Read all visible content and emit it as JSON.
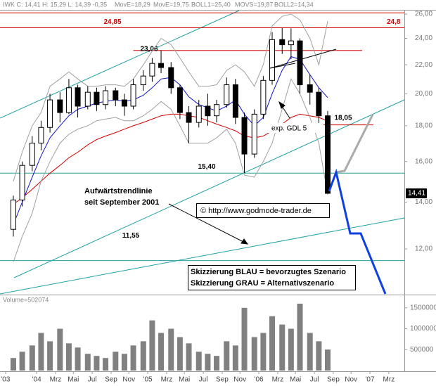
{
  "chart_data": [
    {
      "type": "candlestick",
      "title": "IWK C: 14,41 H: 15,29 L: 14,39 -0,35",
      "header_note": "MOVS=19,87",
      "log_y": true,
      "xlim": [
        2003.67,
        2007.31
      ],
      "ylim": [
        10.35,
        26.3
      ],
      "yticks": [
        {
          "value": 12,
          "label": "12,00"
        },
        {
          "value": 14,
          "label": "14,00"
        },
        {
          "value": 16,
          "label": "16,00"
        },
        {
          "value": 18,
          "label": "18,00"
        },
        {
          "value": 20,
          "label": "20,00"
        },
        {
          "value": 22,
          "label": "22,00"
        },
        {
          "value": 24,
          "label": "24,00"
        },
        {
          "value": 26,
          "label": "26,00"
        }
      ],
      "x": [
        2003.75,
        2003.83,
        2003.92,
        2004,
        2004.08,
        2004.17,
        2004.25,
        2004.33,
        2004.42,
        2004.5,
        2004.58,
        2004.67,
        2004.75,
        2004.83,
        2004.92,
        2005,
        2005.08,
        2005.17,
        2005.25,
        2005.33,
        2005.42,
        2005.5,
        2005.58,
        2005.67,
        2005.75,
        2005.83,
        2005.92,
        2006,
        2006.08,
        2006.17,
        2006.25,
        2006.33,
        2006.42,
        2006.5,
        2006.58
      ],
      "open": [
        12.8,
        14.1,
        15.8,
        17.0,
        17.9,
        19.6,
        18.8,
        20.4,
        19.2,
        20.1,
        19.3,
        20.2,
        19.6,
        19.2,
        20.6,
        21.2,
        22.1,
        21.8,
        20.4,
        18.8,
        18.2,
        19.2,
        18.6,
        19.3,
        20.6,
        18.5,
        16.4,
        18.7,
        20.9,
        23.9,
        23.5,
        23.8,
        20.6,
        20.1,
        18.6
      ],
      "high": [
        14.3,
        16.0,
        17.4,
        18.3,
        20.0,
        20.1,
        21.0,
        20.6,
        20.5,
        20.4,
        20.5,
        20.4,
        20.0,
        21.0,
        21.6,
        22.5,
        23.06,
        22.2,
        20.6,
        19.2,
        19.6,
        20.0,
        19.6,
        21.1,
        21.0,
        18.8,
        19.0,
        21.2,
        24.5,
        24.85,
        24.8,
        24.0,
        21.3,
        20.4,
        18.9
      ],
      "low": [
        12.5,
        13.8,
        15.5,
        16.6,
        17.6,
        18.2,
        18.7,
        18.5,
        19.0,
        18.9,
        19.0,
        19.2,
        18.6,
        19.0,
        20.2,
        20.8,
        21.4,
        20.0,
        18.4,
        17.0,
        17.9,
        18.0,
        18.2,
        19.1,
        18.1,
        15.4,
        16.2,
        18.4,
        20.6,
        22.8,
        22.4,
        20.0,
        19.3,
        18.0,
        14.39
      ],
      "close": [
        14.1,
        15.8,
        17.0,
        17.9,
        19.6,
        18.8,
        20.4,
        19.2,
        20.1,
        19.3,
        20.2,
        19.6,
        19.2,
        20.6,
        21.2,
        22.1,
        21.8,
        20.4,
        18.8,
        18.2,
        19.2,
        18.6,
        19.3,
        20.6,
        18.5,
        16.4,
        18.7,
        20.9,
        23.9,
        23.5,
        23.8,
        20.6,
        20.1,
        18.6,
        14.41
      ],
      "up_color": "#ffffff",
      "down_color": "#000000",
      "series": [
        {
          "name": "MovE=18,29",
          "color": "#d00000",
          "values": [
            13.9,
            14.2,
            14.6,
            15.0,
            15.4,
            15.8,
            16.2,
            16.5,
            16.9,
            17.2,
            17.4,
            17.6,
            17.8,
            18.0,
            18.2,
            18.4,
            18.6,
            18.7,
            18.7,
            18.6,
            18.5,
            18.3,
            18.1,
            17.9,
            17.7,
            17.4,
            17.3,
            17.4,
            17.7,
            18.1,
            18.5,
            18.7,
            18.6,
            18.5,
            18.29
          ]
        },
        {
          "name": "MovE=19,75",
          "color": "#1010c0",
          "values": [
            13.0,
            14.0,
            15.2,
            16.3,
            17.3,
            18.0,
            18.6,
            19.0,
            19.2,
            19.4,
            19.5,
            19.6,
            19.5,
            19.6,
            19.9,
            20.4,
            21.0,
            21.1,
            20.6,
            19.8,
            19.3,
            19.1,
            18.9,
            19.2,
            19.6,
            18.7,
            18.0,
            18.5,
            20.0,
            21.6,
            22.6,
            22.4,
            21.3,
            20.4,
            19.75
          ]
        },
        {
          "name": "BOLL1=25,40",
          "color": "#a0a0a0",
          "values": [
            15.0,
            16.5,
            18.0,
            18.8,
            20.5,
            21.0,
            21.5,
            21.0,
            20.5,
            20.5,
            20.6,
            20.6,
            20.5,
            21.0,
            22.0,
            23.0,
            24.0,
            23.5,
            22.5,
            21.5,
            20.5,
            20.5,
            20.6,
            21.6,
            22.0,
            21.5,
            20.5,
            22.0,
            25.0,
            25.8,
            26.0,
            25.5,
            24.0,
            22.0,
            25.4
          ]
        },
        {
          "name": "BOLL2=14,34",
          "color": "#a0a0a0",
          "values": [
            11.5,
            12.5,
            13.5,
            15.0,
            16.0,
            17.0,
            17.5,
            17.8,
            18.0,
            18.3,
            18.4,
            18.5,
            18.3,
            18.3,
            18.6,
            19.0,
            19.5,
            19.0,
            18.0,
            17.0,
            17.0,
            17.0,
            17.3,
            17.8,
            17.0,
            15.3,
            15.2,
            16.0,
            17.0,
            19.0,
            21.0,
            20.0,
            18.5,
            17.0,
            14.34
          ]
        }
      ],
      "levels": [
        {
          "value": 26.1,
          "color": "#d00000"
        },
        {
          "value": 24.85,
          "label": "24,85",
          "right_label": "24,8",
          "color": "#d00000",
          "label_color": "#d00000"
        },
        {
          "value": 23.06,
          "label": "23,06",
          "color": "#d00000",
          "label_color": "#000000",
          "x": [
            2004.87,
            2006.93
          ]
        },
        {
          "value": 18.05,
          "label": "18,05",
          "color": "#d00000",
          "label_color": "#000000",
          "x": [
            2006.38,
            2007.03
          ]
        },
        {
          "value": 15.4,
          "label": "15,40",
          "color": "#20a0a0",
          "label_color": "#000000"
        },
        {
          "value": 11.55,
          "label": "11,55",
          "color": "#20a0a0",
          "label_color": "#000000"
        }
      ],
      "last_price": {
        "value": 14.41,
        "label": "14,41"
      },
      "annotations": [
        "Aufwärtstrendlinie",
        "seit September 2001",
        "exp. GDL 5",
        "© http://www.godmode-trader.de",
        "Skizzierung BLAU = bevorzugtes Szenario",
        "Skizzierung GRAU = Alternativszenario"
      ]
    },
    {
      "type": "bar",
      "title": "Volume=502074",
      "color": "#808080",
      "xlim": [
        2003.67,
        2007.31
      ],
      "ylim": [
        0,
        1800000
      ],
      "yticks": [
        500000,
        1000000,
        1500000
      ],
      "x": [
        2003.75,
        2003.83,
        2003.92,
        2004,
        2004.08,
        2004.17,
        2004.25,
        2004.33,
        2004.42,
        2004.5,
        2004.58,
        2004.67,
        2004.75,
        2004.83,
        2004.92,
        2005,
        2005.08,
        2005.17,
        2005.25,
        2005.33,
        2005.42,
        2005.5,
        2005.58,
        2005.67,
        2005.75,
        2005.83,
        2005.92,
        2006,
        2006.08,
        2006.17,
        2006.25,
        2006.33,
        2006.42,
        2006.5,
        2006.58
      ],
      "values": [
        300000,
        450000,
        600000,
        900000,
        700000,
        1000000,
        650000,
        550000,
        400000,
        350000,
        300000,
        450000,
        400000,
        600000,
        700000,
        1200000,
        900000,
        1000000,
        800000,
        650000,
        450000,
        400000,
        350000,
        700000,
        600000,
        1500000,
        800000,
        900000,
        1300000,
        1100000,
        1000000,
        1600000,
        900000,
        700000,
        502074
      ],
      "xticks": [
        {
          "value": 2003.72,
          "label": "'03"
        },
        {
          "value": 2004,
          "label": "'04"
        },
        {
          "value": 2004.17,
          "label": "Mrz"
        },
        {
          "value": 2004.33,
          "label": "Mai"
        },
        {
          "value": 2004.5,
          "label": "Jul"
        },
        {
          "value": 2004.67,
          "label": "Sep"
        },
        {
          "value": 2004.83,
          "label": "Nov"
        },
        {
          "value": 2005,
          "label": "'05"
        },
        {
          "value": 2005.17,
          "label": "Mrz"
        },
        {
          "value": 2005.33,
          "label": "Mai"
        },
        {
          "value": 2005.5,
          "label": "Jul"
        },
        {
          "value": 2005.67,
          "label": "Sep"
        },
        {
          "value": 2005.83,
          "label": "Nov"
        },
        {
          "value": 2006,
          "label": "'06"
        },
        {
          "value": 2006.17,
          "label": "Mrz"
        },
        {
          "value": 2006.33,
          "label": "Mai"
        },
        {
          "value": 2006.5,
          "label": "Jul"
        },
        {
          "value": 2006.67,
          "label": "Sep"
        },
        {
          "value": 2006.83,
          "label": "Nov"
        },
        {
          "value": 2007,
          "label": "'07"
        },
        {
          "value": 2007.17,
          "label": "Mrz"
        }
      ]
    }
  ]
}
